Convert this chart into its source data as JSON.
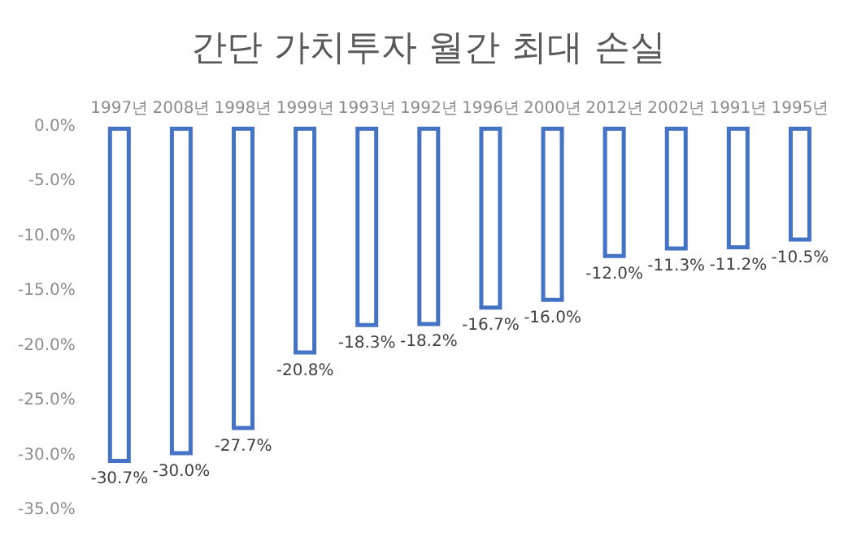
{
  "chart_data": {
    "type": "bar",
    "title": "간단 가치투자 월간 최대 손실",
    "categories": [
      "1997년",
      "2008년",
      "1998년",
      "1999년",
      "1993년",
      "1992년",
      "1996년",
      "2000년",
      "2012년",
      "2002년",
      "1991년",
      "1995년"
    ],
    "values": [
      -30.7,
      -30.0,
      -27.7,
      -20.8,
      -18.3,
      -18.2,
      -16.7,
      -16.0,
      -12.0,
      -11.3,
      -11.2,
      -10.5
    ],
    "value_labels": [
      "-30.7%",
      "-30.0%",
      "-27.7%",
      "-20.8%",
      "-18.3%",
      "-18.2%",
      "-16.7%",
      "-16.0%",
      "-12.0%",
      "-11.3%",
      "-11.2%",
      "-10.5%"
    ],
    "color": "#4472c4",
    "ylim": [
      -35,
      0
    ],
    "yticks": [
      {
        "value": -35,
        "label": "-35.0%"
      },
      {
        "value": -30,
        "label": "-30.0%"
      },
      {
        "value": -25,
        "label": "-25.0%"
      },
      {
        "value": -20,
        "label": "-20.0%"
      },
      {
        "value": -15,
        "label": "-15.0%"
      },
      {
        "value": -10,
        "label": "-10.0%"
      },
      {
        "value": -5,
        "label": "-5.0%"
      },
      {
        "value": 0,
        "label": "0.0%"
      }
    ]
  }
}
